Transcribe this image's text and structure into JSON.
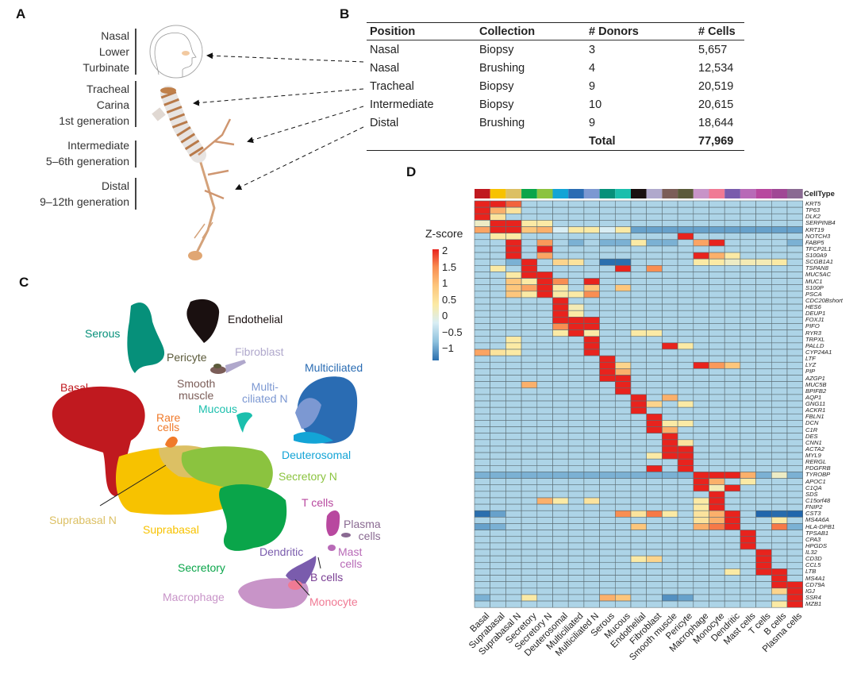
{
  "panels": {
    "a": "A",
    "b": "B",
    "c": "C",
    "d": "D"
  },
  "panel_a": {
    "groups": [
      {
        "lines": [
          "Nasal",
          "Lower",
          "Turbinate"
        ]
      },
      {
        "lines": [
          "Tracheal",
          "Carina",
          "1st generation"
        ]
      },
      {
        "lines": [
          "Intermediate",
          "5–6th generation"
        ]
      },
      {
        "lines": [
          "Distal",
          "9–12th generation"
        ]
      }
    ]
  },
  "panel_b": {
    "headers": [
      "Position",
      "Collection",
      "# Donors",
      "# Cells"
    ],
    "rows": [
      [
        "Nasal",
        "Biopsy",
        "3",
        "5,657"
      ],
      [
        "Nasal",
        "Brushing",
        "4",
        "12,534"
      ],
      [
        "Tracheal",
        "Biopsy",
        "9",
        "20,519"
      ],
      [
        "Intermediate",
        "Biopsy",
        "10",
        "20,615"
      ],
      [
        "Distal",
        "Brushing",
        "9",
        "18,644"
      ]
    ],
    "total_label": "Total",
    "total_value": "77,969"
  },
  "panel_c": {
    "labels": {
      "endothelial": "Endothelial",
      "serous": "Serous",
      "pericyte": "Pericyte",
      "fibroblast": "Fibroblast",
      "multiciliated": "Multiciliated",
      "basal": "Basal",
      "smooth1": "Smooth",
      "smooth2": "muscle",
      "mcn1": "Multi-",
      "mcn2": "ciliated N",
      "mucous": "Mucous",
      "rare1": "Rare",
      "rare2": "cells",
      "deuterosomal": "Deuterosomal",
      "secretory_n": "Secretory N",
      "t_cells": "T cells",
      "suprabasal_n": "Suprabasal N",
      "plasma1": "Plasma",
      "plasma2": "cells",
      "suprabasal": "Suprabasal",
      "mast1": "Mast",
      "mast2": "cells",
      "dendritic": "Dendritic",
      "b_cells": "B cells",
      "secretory": "Secretory",
      "macrophage": "Macrophage",
      "monocyte": "Monocyte"
    }
  },
  "chart_data": {
    "type": "heatmap",
    "title": "",
    "legend_title": "Z-score",
    "colorbar_ticks": [
      "2",
      "1.5",
      "1",
      "0.5",
      "0",
      "−0.5",
      "−1"
    ],
    "value_range": [
      -1.3,
      2
    ],
    "annotation_label": "CellType",
    "columns": [
      "Basal",
      "Suprabasal",
      "Suprabasal N",
      "Secretory",
      "Secretory N",
      "Deuterosomal",
      "Multiciliated",
      "Multiciliated N",
      "Serous",
      "Mucous",
      "Endothelial",
      "Fibroblast",
      "Smooth muscle",
      "Pericyte",
      "Macrophage",
      "Monocyte",
      "Dendritic",
      "Mast cells",
      "T cells",
      "B cells",
      "Plasma cells"
    ],
    "column_colors": [
      "#c0191f",
      "#f7c200",
      "#dcc064",
      "#0aa54a",
      "#8bc33f",
      "#13a4d6",
      "#2a6cb3",
      "#7c98d2",
      "#06907a",
      "#1bbfad",
      "#1a1010",
      "#b0a8cc",
      "#7b5d58",
      "#5b5a3a",
      "#c894c8",
      "#f07a94",
      "#7a5cad",
      "#b86ab7",
      "#b8489f",
      "#a04895",
      "#8a6a92"
    ],
    "default_value": -0.3,
    "rows": [
      {
        "gene": "KRT5",
        "v": {
          "0": 2,
          "1": 2,
          "2": 1.7
        }
      },
      {
        "gene": "TP63",
        "v": {
          "0": 2,
          "1": 1.2,
          "2": 0.6
        }
      },
      {
        "gene": "DLK2",
        "v": {
          "0": 2,
          "1": 0.6
        }
      },
      {
        "gene": "SERPINB4",
        "v": {
          "0": 0.3,
          "1": 2,
          "2": 2,
          "3": 0.5,
          "4": 0.5
        }
      },
      {
        "gene": "KRT19",
        "base": -0.7,
        "v": {
          "0": 1.3,
          "1": 2,
          "2": 2,
          "3": 1,
          "4": 1.2,
          "5": 0,
          "6": 0.5,
          "7": 0.5,
          "8": 0,
          "9": 0.5
        }
      },
      {
        "gene": "NOTCH3",
        "v": {
          "1": 0.5,
          "2": 0.5,
          "13": 2
        }
      },
      {
        "gene": "FABP5",
        "v": {
          "2": 2,
          "4": 1.4,
          "6": -0.6,
          "8": -0.6,
          "9": -0.6,
          "10": 0.5,
          "11": -0.6,
          "12": -0.6,
          "14": 1.3,
          "15": 2,
          "20": -0.6
        }
      },
      {
        "gene": "TFCP2L1",
        "v": {
          "2": 2,
          "4": 2
        }
      },
      {
        "gene": "S100A9",
        "v": {
          "2": 2,
          "4": 1.3,
          "14": 2,
          "15": 1.2,
          "16": 0.5
        }
      },
      {
        "gene": "SCGB1A1",
        "v": {
          "2": -0.6,
          "3": 2,
          "5": 0.8,
          "6": 0.6,
          "8": -1,
          "9": -1,
          "14": 0.5,
          "15": 0.5,
          "16": 0.3,
          "17": 0.4,
          "18": 0.4,
          "19": 0.5
        }
      },
      {
        "gene": "TSPAN8",
        "v": {
          "1": 0.5,
          "3": 2,
          "9": 2,
          "11": 1.5
        }
      },
      {
        "gene": "MUC5AC",
        "v": {
          "2": 0.5,
          "3": 2,
          "4": 2
        }
      },
      {
        "gene": "MUC1",
        "v": {
          "2": 1,
          "3": 0.5,
          "4": 2,
          "5": 1.5,
          "7": 2
        }
      },
      {
        "gene": "S100P",
        "v": {
          "2": 1,
          "3": 1.3,
          "4": 2,
          "5": 0.5,
          "7": 1,
          "9": 1
        }
      },
      {
        "gene": "PSCA",
        "v": {
          "2": 1,
          "3": 0.5,
          "4": 2,
          "5": 0.5,
          "6": 0.5,
          "7": 1.5
        }
      },
      {
        "gene": "CDC20Bshort",
        "v": {
          "5": 2
        }
      },
      {
        "gene": "HES6",
        "v": {
          "5": 2,
          "6": 0.4
        }
      },
      {
        "gene": "DEUP1",
        "v": {
          "5": 2,
          "6": 0.5
        }
      },
      {
        "gene": "FOXJ1",
        "v": {
          "5": 2,
          "6": 2,
          "7": 2
        }
      },
      {
        "gene": "PIFO",
        "v": {
          "5": 1.5,
          "6": 2,
          "7": 2
        }
      },
      {
        "gene": "RYR3",
        "v": {
          "5": 0.5,
          "6": 2,
          "7": 0.5,
          "10": 0.5,
          "11": 0.5
        }
      },
      {
        "gene": "TRPXL",
        "v": {
          "2": 0.5,
          "7": 2
        }
      },
      {
        "gene": "PALLD",
        "v": {
          "2": 0.5,
          "7": 2,
          "12": 2,
          "13": 0.5
        }
      },
      {
        "gene": "CYP24A1",
        "v": {
          "0": 1.3,
          "1": 0.6,
          "2": 0.5,
          "7": 2
        }
      },
      {
        "gene": "LTF",
        "v": {
          "8": 2
        }
      },
      {
        "gene": "LYZ",
        "v": {
          "8": 2,
          "9": 0.8,
          "14": 2,
          "15": 1.4,
          "16": 1
        }
      },
      {
        "gene": "PIP",
        "v": {
          "8": 2,
          "9": 1.2
        }
      },
      {
        "gene": "AZGP1",
        "v": {
          "8": 2,
          "9": 2
        }
      },
      {
        "gene": "MUC5B",
        "v": {
          "3": 1.2,
          "9": 2
        }
      },
      {
        "gene": "BPIFB2",
        "v": {
          "9": 2
        }
      },
      {
        "gene": "AQP1",
        "v": {
          "10": 2,
          "12": 1.2
        }
      },
      {
        "gene": "GNG11",
        "v": {
          "10": 2,
          "11": 0.8,
          "13": 0.5
        }
      },
      {
        "gene": "ACKR1",
        "v": {
          "10": 2
        }
      },
      {
        "gene": "FBLN1",
        "v": {
          "11": 2
        }
      },
      {
        "gene": "DCN",
        "v": {
          "11": 2,
          "12": 0.5,
          "13": 0.5
        }
      },
      {
        "gene": "C1R",
        "v": {
          "11": 2,
          "12": 1.2
        }
      },
      {
        "gene": "DES",
        "v": {
          "12": 2
        }
      },
      {
        "gene": "CNN1",
        "v": {
          "12": 2,
          "13": 0.6
        }
      },
      {
        "gene": "ACTA2",
        "v": {
          "12": 2,
          "13": 2
        }
      },
      {
        "gene": "MYL9",
        "v": {
          "11": 0.5,
          "12": 2,
          "13": 2
        }
      },
      {
        "gene": "RERGL",
        "v": {
          "13": 2
        }
      },
      {
        "gene": "PDGFRB",
        "v": {
          "11": 2,
          "13": 2
        }
      },
      {
        "gene": "TYROBP",
        "base": -0.6,
        "v": {
          "14": 2,
          "15": 2,
          "16": 2,
          "17": 1.2,
          "19": 0.3
        }
      },
      {
        "gene": "APOC1",
        "v": {
          "14": 2,
          "15": 1.2,
          "17": 0.5
        }
      },
      {
        "gene": "C1QA",
        "v": {
          "14": 2,
          "15": 0.4,
          "16": 2
        }
      },
      {
        "gene": "SDS",
        "v": {
          "15": 2
        }
      },
      {
        "gene": "C15orf48",
        "v": {
          "4": 1.2,
          "5": 0.5,
          "7": 0.6,
          "14": 0.5,
          "15": 2
        }
      },
      {
        "gene": "FNIP2",
        "v": {
          "14": 0.5,
          "15": 2
        }
      },
      {
        "gene": "CST3",
        "v": {
          "0": -1,
          "1": -0.7,
          "9": 1.5,
          "10": 0.6,
          "11": 1.6,
          "12": 0.5,
          "14": 0.6,
          "15": 1.2,
          "16": 2,
          "18": -1.3,
          "19": -1.1,
          "20": -1.3
        }
      },
      {
        "gene": "MS4A6A",
        "v": {
          "14": 0.6,
          "15": 1.2,
          "16": 2,
          "19": 0.5
        }
      },
      {
        "gene": "HLA-DPB1",
        "v": {
          "0": -0.7,
          "1": -0.6,
          "10": 1,
          "14": 1.2,
          "15": 1.6,
          "16": 2,
          "19": 1.6,
          "20": -0.6
        }
      },
      {
        "gene": "TPSAB1",
        "v": {
          "17": 2
        }
      },
      {
        "gene": "CPA3",
        "v": {
          "17": 2
        }
      },
      {
        "gene": "HPGDS",
        "v": {
          "17": 2
        }
      },
      {
        "gene": "IL32",
        "v": {
          "18": 2
        }
      },
      {
        "gene": "CD3D",
        "v": {
          "10": 0.5,
          "11": 0.8,
          "18": 2
        }
      },
      {
        "gene": "CCL5",
        "v": {
          "18": 2
        }
      },
      {
        "gene": "LTB",
        "v": {
          "16": 0.5,
          "18": 2,
          "19": 2
        }
      },
      {
        "gene": "MS4A1",
        "v": {
          "19": 2
        }
      },
      {
        "gene": "CD79A",
        "v": {
          "19": 2,
          "20": 2
        }
      },
      {
        "gene": "IGJ",
        "v": {
          "19": 0.8,
          "20": 2
        }
      },
      {
        "gene": "SSR4",
        "v": {
          "0": -0.6,
          "3": 0.5,
          "8": 1.2,
          "9": 1,
          "12": -0.8,
          "13": -0.7,
          "20": 2
        }
      },
      {
        "gene": "MZB1",
        "v": {
          "19": 0.5,
          "20": 2
        }
      }
    ]
  }
}
